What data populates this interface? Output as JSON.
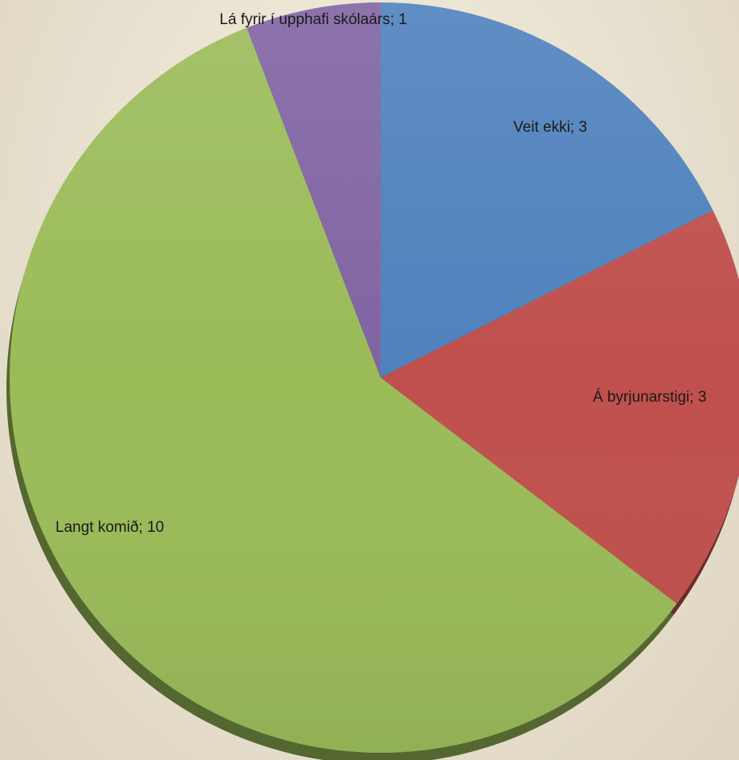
{
  "chart_data": {
    "type": "pie",
    "title": "",
    "slices": [
      {
        "label": "Veit ekki; 3",
        "category": "Veit ekki",
        "value": 3,
        "color": "#4f81bd"
      },
      {
        "label": "Á byrjunarstigi; 3",
        "category": "Á byrjunarstigi",
        "value": 3,
        "color": "#c0504d"
      },
      {
        "label": "Langt komið; 10",
        "category": "Langt komið",
        "value": 10,
        "color": "#9bbb59"
      },
      {
        "label": "Lá fyrir í upphafi skólaárs; 1",
        "category": "Lá fyrir í upphafi skólaárs",
        "value": 1,
        "color": "#8064a2"
      }
    ],
    "start_angle": "12 o'clock",
    "direction": "clockwise",
    "legend": "none",
    "style": "3d-tilted"
  }
}
